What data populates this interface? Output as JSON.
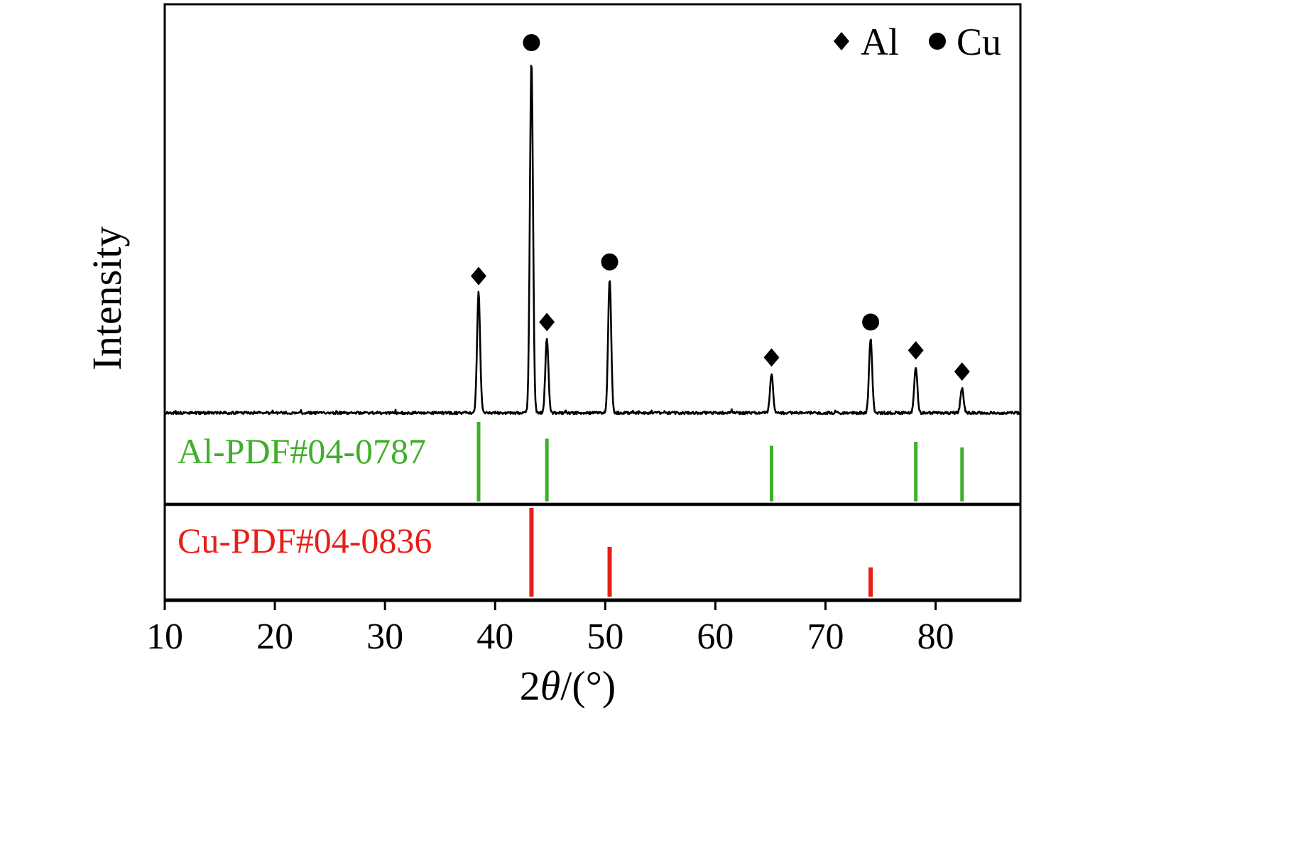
{
  "chart_data": {
    "type": "line",
    "title": "",
    "xlabel": "2θ/(°)",
    "ylabel": "Intensity",
    "xlim": [
      10,
      87.7
    ],
    "x_ticks": [
      10,
      20,
      30,
      40,
      50,
      60,
      70,
      80
    ],
    "grid": false,
    "legend_position": "top-right",
    "legend": [
      {
        "marker": "diamond",
        "label": "Al"
      },
      {
        "marker": "circle",
        "label": "Cu"
      }
    ],
    "colors": {
      "trace": "#000000",
      "al_reference": "#3fae29",
      "cu_reference": "#e62019"
    },
    "series": [
      {
        "name": "XRD pattern",
        "color": "#000000",
        "peaks": [
          {
            "two_theta": 38.5,
            "intensity": 34,
            "phase": "Al",
            "marker": "diamond"
          },
          {
            "two_theta": 43.3,
            "intensity": 100,
            "phase": "Cu",
            "marker": "circle"
          },
          {
            "two_theta": 44.7,
            "intensity": 21,
            "phase": "Al",
            "marker": "diamond"
          },
          {
            "two_theta": 50.4,
            "intensity": 38,
            "phase": "Cu",
            "marker": "circle"
          },
          {
            "two_theta": 65.1,
            "intensity": 11,
            "phase": "Al",
            "marker": "diamond"
          },
          {
            "two_theta": 74.1,
            "intensity": 21,
            "phase": "Cu",
            "marker": "circle"
          },
          {
            "two_theta": 78.2,
            "intensity": 13,
            "phase": "Al",
            "marker": "diamond"
          },
          {
            "two_theta": 82.4,
            "intensity": 7,
            "phase": "Al",
            "marker": "diamond"
          }
        ]
      }
    ],
    "reference_patterns": [
      {
        "label": "Al-PDF#04-0787",
        "color": "#3fae29",
        "lines": [
          {
            "two_theta": 38.5,
            "rel_height": 1.0
          },
          {
            "two_theta": 44.7,
            "rel_height": 0.79
          },
          {
            "two_theta": 65.1,
            "rel_height": 0.7
          },
          {
            "two_theta": 78.2,
            "rel_height": 0.75
          },
          {
            "two_theta": 82.4,
            "rel_height": 0.68
          }
        ]
      },
      {
        "label": "Cu-PDF#04-0836",
        "color": "#e62019",
        "lines": [
          {
            "two_theta": 43.3,
            "rel_height": 1.0
          },
          {
            "two_theta": 50.4,
            "rel_height": 0.56
          },
          {
            "two_theta": 74.1,
            "rel_height": 0.33
          }
        ]
      }
    ]
  }
}
